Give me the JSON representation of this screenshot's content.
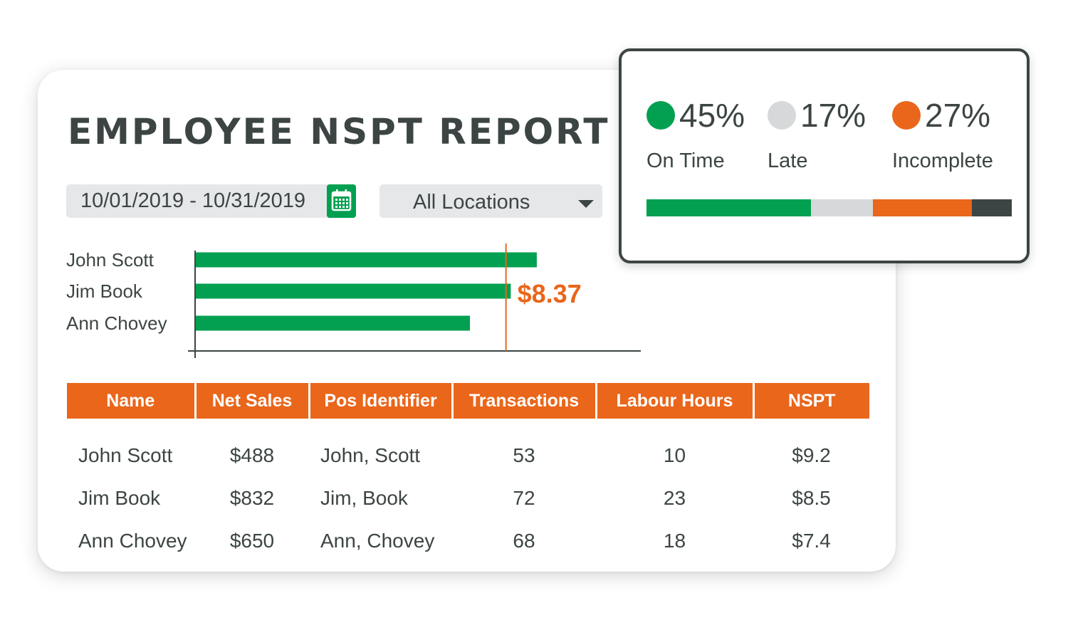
{
  "report": {
    "title": "EMPLOYEE NSPT REPORT",
    "date_range": "10/01/2019 - 10/31/2019",
    "location_select": "All Locations"
  },
  "colors": {
    "green": "#02a050",
    "orange": "#e9661b",
    "gray": "#d7d8d9",
    "dark": "#3c4543"
  },
  "icons": {
    "calendar": "calendar-icon",
    "dropdown": "chevron-down-icon"
  },
  "chart_data": {
    "type": "bar",
    "orientation": "horizontal",
    "title": "",
    "xlabel": "",
    "ylabel": "",
    "categories": [
      "John Scott",
      "Jim Book",
      "Ann Chovey"
    ],
    "values": [
      9.2,
      8.5,
      7.4
    ],
    "xlim": [
      0,
      12
    ],
    "average": 8.37,
    "average_label": "$8.37"
  },
  "table": {
    "columns": [
      "Name",
      "Net Sales",
      "Pos Identifier",
      "Transactions",
      "Labour Hours",
      "NSPT"
    ],
    "rows": [
      [
        "John Scott",
        "$488",
        "John, Scott",
        "53",
        "10",
        "$9.2"
      ],
      [
        "Jim Book",
        "$832",
        "Jim, Book",
        "72",
        "23",
        "$8.5"
      ],
      [
        "Ann Chovey",
        "$650",
        "Ann, Chovey",
        "68",
        "18",
        "$7.4"
      ]
    ]
  },
  "status_summary": {
    "items": [
      {
        "percent_label": "45%",
        "label": "On Time",
        "percent": 45,
        "color": "#02a050"
      },
      {
        "percent_label": "17%",
        "label": "Late",
        "percent": 17,
        "color": "#d7d8d9"
      },
      {
        "percent_label": "27%",
        "label": "Incomplete",
        "percent": 27,
        "color": "#e9661b"
      }
    ]
  }
}
